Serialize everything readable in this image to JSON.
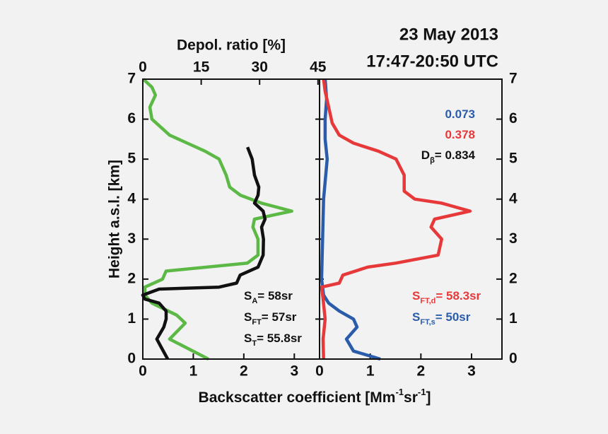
{
  "chart_data": {
    "type": "line",
    "title": [
      "23 May 2013",
      "17:47-20:50 UTC"
    ],
    "ylabel": "Height a.s.l. [km]",
    "xlabel": [
      "Backscatter coefficient [Mm",
      "-1",
      "sr",
      "-1",
      "]"
    ],
    "x2label": "Depol. ratio [%]",
    "ylim": [
      0,
      7
    ],
    "yticks": [
      0,
      1,
      2,
      3,
      4,
      5,
      6,
      7
    ],
    "x2lim": [
      0,
      45.4
    ],
    "x2ticks": [
      0,
      15,
      30,
      45
    ],
    "panels": [
      {
        "xlim": [
          0,
          3.5
        ],
        "xticks": [
          0,
          1,
          2,
          3
        ],
        "series": [
          {
            "color": "#5cb946",
            "values": [
              1.3,
              0.53,
              0.84,
              0.67,
              0.18,
              0.04,
              0.04,
              0.39,
              0.46,
              2.07,
              2.28,
              2.28,
              2.18,
              2.21,
              2.95,
              2.35,
              1.93,
              1.72,
              1.65,
              1.51,
              1.23,
              0.88,
              0.53,
              0.18,
              0.14,
              0.25,
              0.18,
              0.01
            ],
            "heights": [
              0,
              0.5,
              0.9,
              1.1,
              1.4,
              1.6,
              1.8,
              2.0,
              2.2,
              2.4,
              2.6,
              3.0,
              3.3,
              3.5,
              3.7,
              3.9,
              4.1,
              4.3,
              4.6,
              5.0,
              5.2,
              5.4,
              5.6,
              6.0,
              6.3,
              6.6,
              6.8,
              7.0
            ]
          },
          {
            "color": "#111111",
            "axis": "x2",
            "values": [
              6.4,
              4.7,
              3.6,
              5.4,
              6.0,
              6.0,
              4.2,
              0.5,
              0,
              4.2,
              19.6,
              24.1,
              25,
              29.6,
              30.9,
              31,
              30.5,
              31.4,
              30.9,
              28.7,
              29.6,
              29.8,
              28.7,
              28.1,
              26.9
            ],
            "heights": [
              0,
              0.3,
              0.5,
              0.8,
              1.0,
              1.2,
              1.4,
              1.5,
              1.6,
              1.75,
              1.8,
              1.9,
              2.1,
              2.3,
              2.6,
              3.0,
              3.3,
              3.5,
              3.7,
              3.9,
              4.1,
              4.3,
              4.6,
              5.0,
              5.3
            ]
          }
        ],
        "annotations": [
          {
            "parts": [
              "S",
              "A",
              "= 58sr"
            ],
            "color": "#111111"
          },
          {
            "parts": [
              "S",
              "FT",
              "= 57sr"
            ],
            "color": "#111111"
          },
          {
            "parts": [
              "S",
              "T",
              "= 55.8sr"
            ],
            "color": "#111111"
          }
        ]
      },
      {
        "xlim": [
          0,
          3.6
        ],
        "xticks": [
          0,
          1,
          2,
          3
        ],
        "series": [
          {
            "color": "#2a5caa",
            "values": [
              1.2,
              0.67,
              0.53,
              0.74,
              0.67,
              0.39,
              0.18,
              0.08,
              0.04,
              0.06,
              0.08,
              0.15,
              0.11,
              0.11,
              0.14,
              0.11
            ],
            "heights": [
              0,
              0.2,
              0.5,
              0.8,
              1.0,
              1.2,
              1.4,
              1.6,
              2.0,
              3.0,
              4.0,
              5.0,
              5.5,
              6.0,
              6.5,
              7.0
            ]
          },
          {
            "color": "#e8393a",
            "values": [
              0.08,
              0.07,
              0.11,
              0.07,
              0.04,
              0.39,
              0.46,
              0.95,
              1.51,
              2.34,
              2.41,
              2.2,
              2.27,
              2.97,
              2.41,
              1.88,
              1.67,
              1.67,
              1.51,
              1.16,
              0.67,
              0.39,
              0.25,
              0.18,
              0.11,
              0.08
            ],
            "heights": [
              0,
              0.5,
              1.0,
              1.5,
              1.8,
              1.9,
              2.1,
              2.3,
              2.4,
              2.6,
              3.0,
              3.3,
              3.5,
              3.7,
              3.9,
              4.0,
              4.2,
              4.6,
              5.0,
              5.2,
              5.4,
              5.6,
              5.9,
              6.3,
              6.7,
              7.0
            ]
          }
        ],
        "annotations": [
          {
            "parts": [
              "0.073"
            ],
            "color": "#2a5caa"
          },
          {
            "parts": [
              "0.378"
            ],
            "color": "#e8393a"
          },
          {
            "parts": [
              "D",
              "β",
              "= 0.834"
            ],
            "color": "#111111"
          },
          {
            "parts": [
              "S",
              "FT,d",
              "= 58.3sr"
            ],
            "color": "#e8393a"
          },
          {
            "parts": [
              "S",
              "FT,s",
              "= 50sr"
            ],
            "color": "#2a5caa"
          }
        ]
      }
    ]
  }
}
